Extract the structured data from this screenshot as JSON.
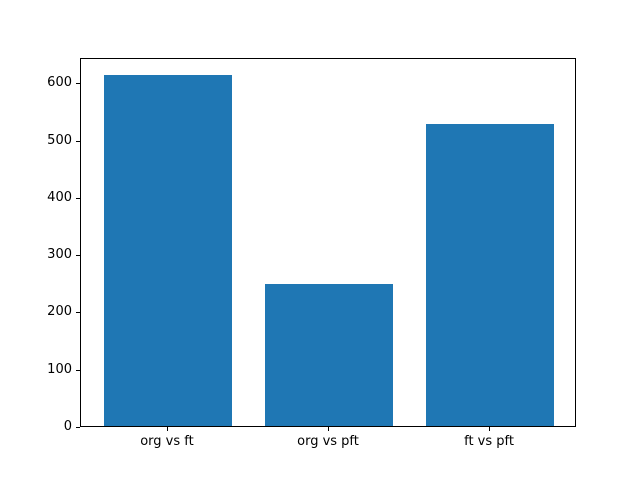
{
  "chart_data": {
    "type": "bar",
    "title": "",
    "xlabel": "",
    "ylabel": "",
    "categories": [
      "org vs ft",
      "org vs pft",
      "ft vs pft"
    ],
    "values": [
      613,
      247,
      527
    ],
    "yticks": [
      0,
      100,
      200,
      300,
      400,
      500,
      600
    ],
    "ylim": [
      0,
      644
    ],
    "bar_color": "#1f77b4",
    "background_color": "#ffffff",
    "axis_color": "#000000",
    "grid": false,
    "legend": null
  }
}
